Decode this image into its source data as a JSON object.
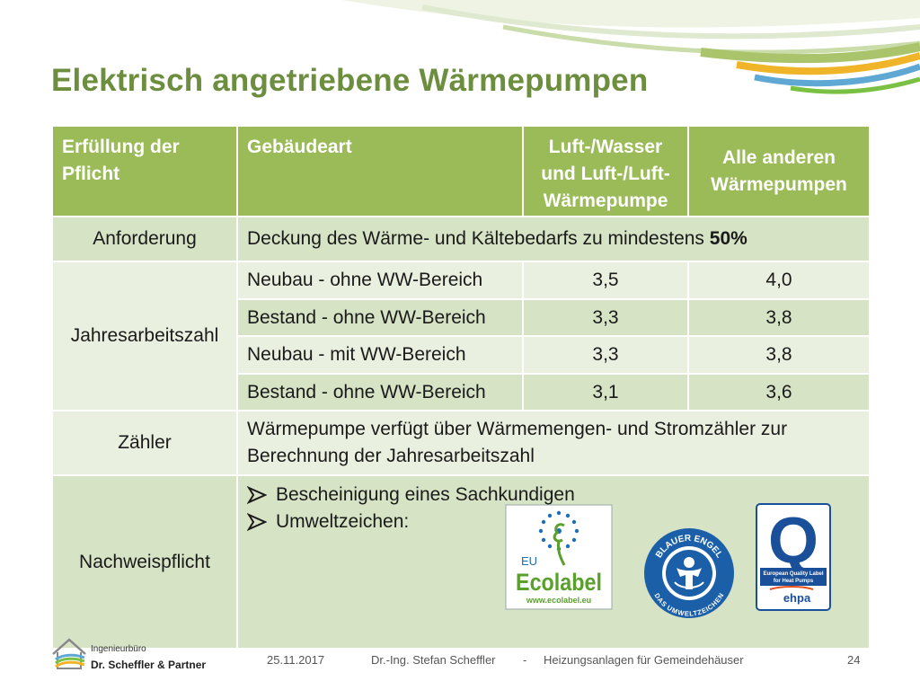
{
  "title": "Elektrisch angetriebene Wärmepumpen",
  "table": {
    "headers": [
      "Erfüllung der Pflicht",
      "Gebäudeart",
      "Luft-/Wasser und Luft-/Luft-Wärmepumpe",
      "Alle anderen Wärmepumpen"
    ],
    "anforderung": {
      "label": "Anforderung",
      "text": "Deckung des Wärme- und Kältebedarfs zu mindestens ",
      "value": "50%"
    },
    "jaz": {
      "label": "Jahresarbeitszahl",
      "rows": [
        {
          "type": "Neubau - ohne WW-Bereich",
          "luft": "3,5",
          "andere": "4,0"
        },
        {
          "type": "Bestand - ohne WW-Bereich",
          "luft": "3,3",
          "andere": "3,8"
        },
        {
          "type": "Neubau - mit WW-Bereich",
          "luft": "3,3",
          "andere": "3,8"
        },
        {
          "type": "Bestand - ohne WW-Bereich",
          "luft": "3,1",
          "andere": "3,6"
        }
      ]
    },
    "zaehler": {
      "label": "Zähler",
      "text": "Wärmepumpe verfügt über Wärmemengen- und Stromzähler zur Berechnung der Jahresarbeitszahl"
    },
    "nachweis": {
      "label": "Nachweispflicht",
      "bullets": [
        "Bescheinigung eines Sachkundigen",
        "Umweltzeichen:"
      ]
    }
  },
  "logos": {
    "ecolabel": {
      "eu": "EU",
      "name": "Ecolabel",
      "url": "www.ecolabel.eu"
    },
    "blauer_engel": {
      "top": "BLAUER ENGEL",
      "bottom": "DAS UMWELTZEICHEN"
    },
    "ehpa": {
      "letter": "Q",
      "line1": "European Quality Label",
      "line2": "for Heat Pumps",
      "brand": "ehpa"
    }
  },
  "footer": {
    "company_small": "Ingenieurbüro",
    "company": "Dr. Scheffler & Partner",
    "date": "25.11.2017",
    "author": "Dr.-Ing. Stefan Scheffler",
    "separator": "-",
    "subject": "Heizungsanlagen für Gemeindehäuser",
    "page": "24"
  },
  "colors": {
    "accent": "#9bbb59",
    "title": "#6c8e3e",
    "row_light": "#eaf0e0",
    "row_mid": "#d6e3c5"
  }
}
